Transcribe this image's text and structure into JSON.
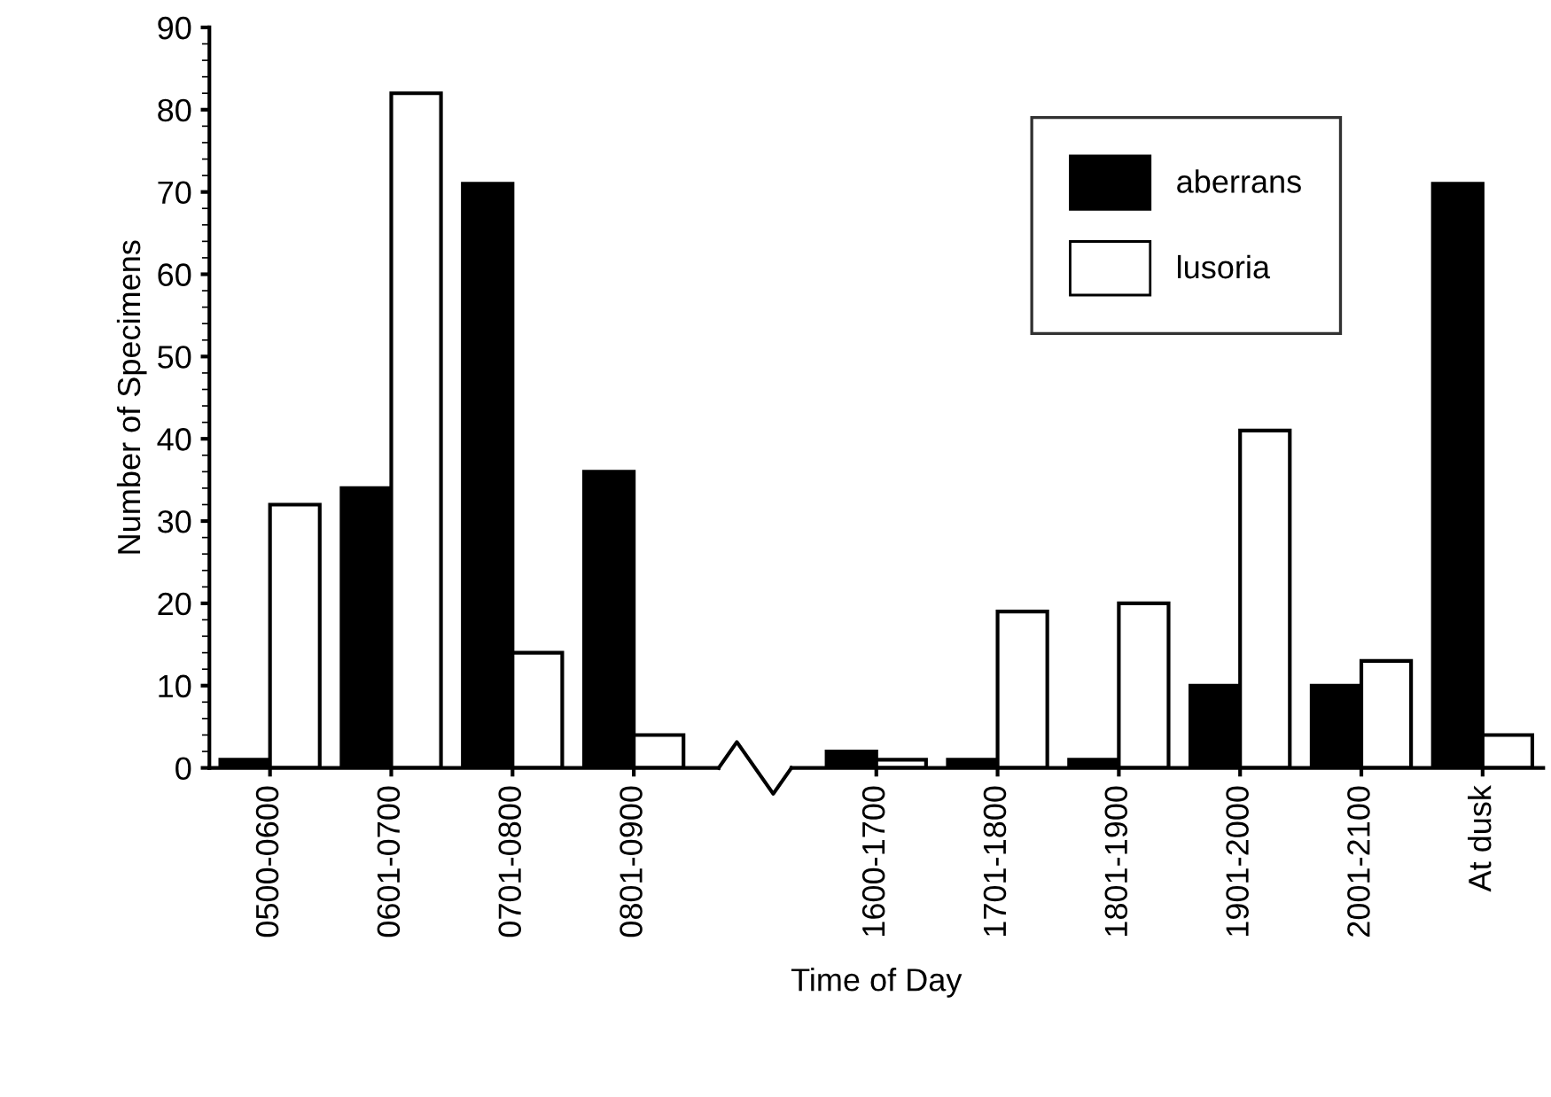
{
  "chart_data": {
    "type": "bar",
    "xlabel": "Time of Day",
    "ylabel": "Number of Specimens",
    "categories": [
      "0500-0600",
      "0601-0700",
      "0701-0800",
      "0801-0900",
      null,
      "1600-1700",
      "1701-1800",
      "1801-1900",
      "1901-2000",
      "2001-2100",
      "At dusk"
    ],
    "series": [
      {
        "name": "aberrans",
        "color": "#000000",
        "values": [
          1,
          34,
          71,
          36,
          null,
          2,
          1,
          1,
          10,
          10,
          71
        ]
      },
      {
        "name": "lusoria",
        "color": "#ffffff",
        "values": [
          32,
          82,
          14,
          4,
          null,
          1,
          19,
          20,
          41,
          13,
          4
        ]
      }
    ],
    "ylim": [
      0,
      90
    ],
    "yticks": [
      0,
      10,
      20,
      30,
      40,
      50,
      60,
      70,
      80,
      90
    ],
    "grid": false,
    "legend": "top right"
  }
}
